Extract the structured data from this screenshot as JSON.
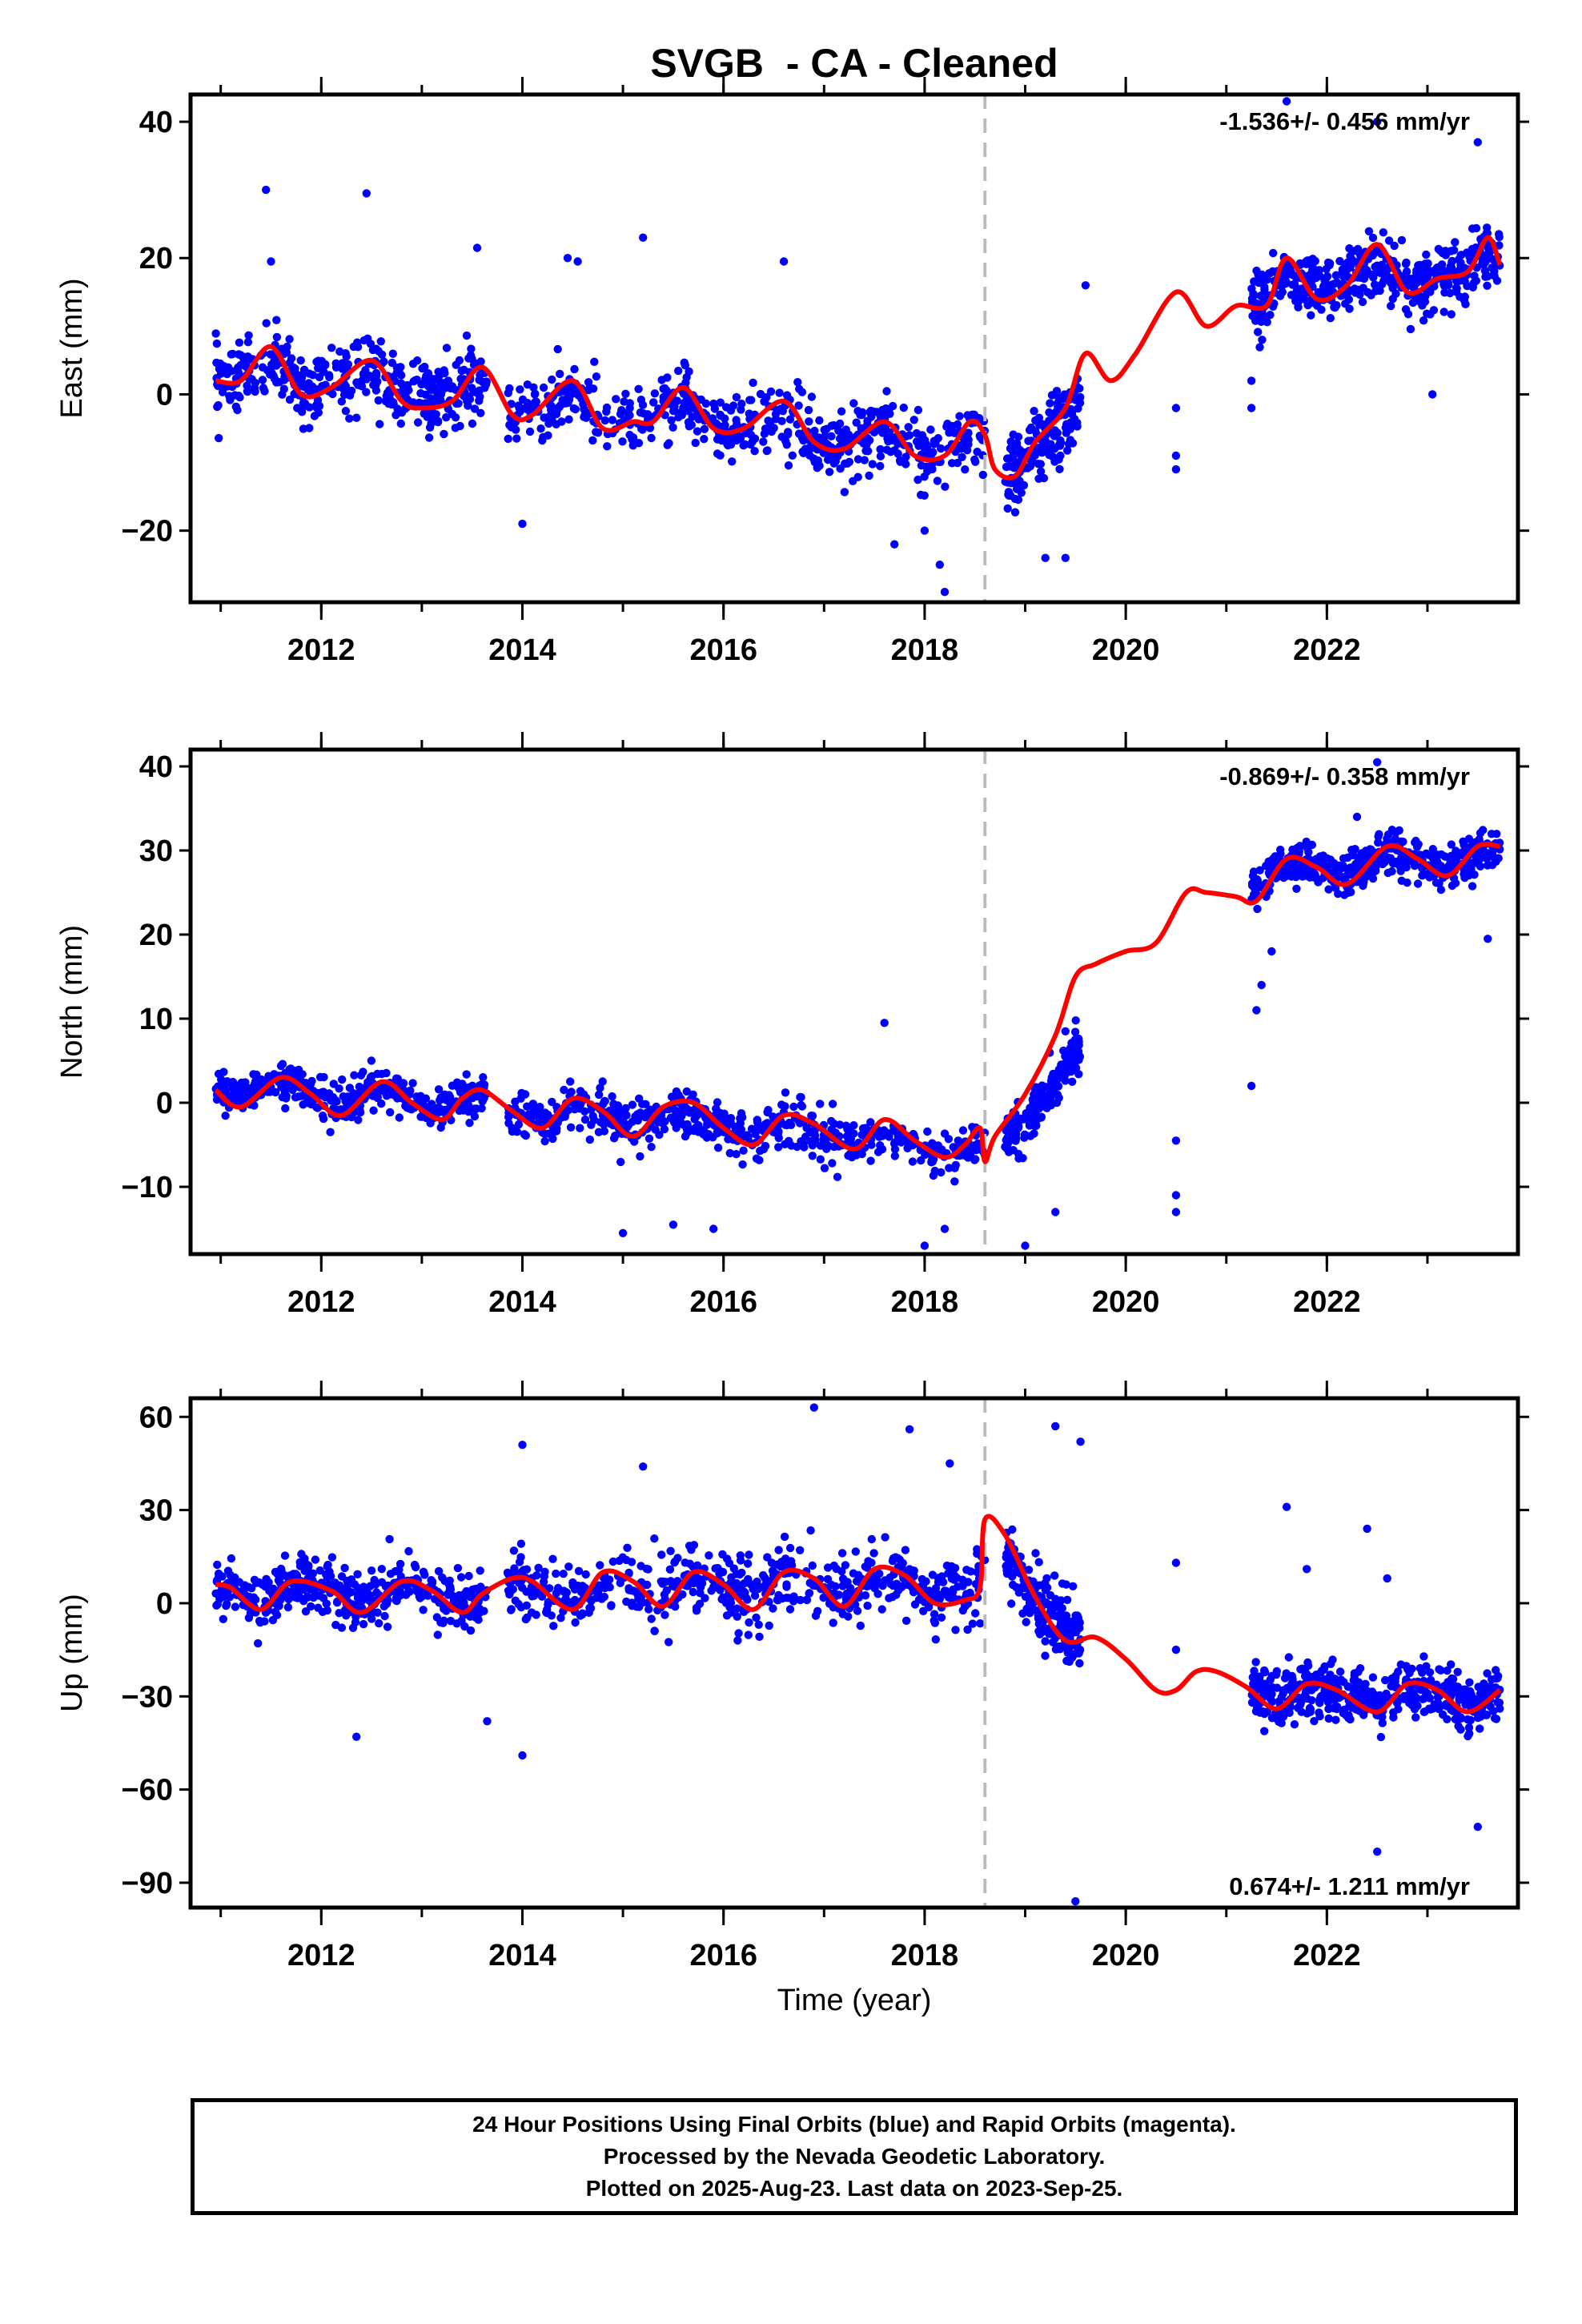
{
  "title": "SVGB  - CA - Cleaned",
  "colors": {
    "data": "#0000ff",
    "model": "#ff0000",
    "break_line": "#bbbbbb",
    "axes": "#000000"
  },
  "footer": {
    "line1": "24 Hour Positions Using Final Orbits (blue) and Rapid Orbits (magenta).",
    "line2": "Processed by the Nevada Geodetic Laboratory.",
    "line3": "Plotted on 2025-Aug-23. Last data on 2023-Sep-25."
  },
  "chart_data": [
    {
      "type": "scatter",
      "panel": "east",
      "ylabel": "East (mm)",
      "xlabel": "",
      "xlim": [
        2010.7,
        2023.9
      ],
      "ylim": [
        -30.5,
        44
      ],
      "xticks": [
        2012,
        2014,
        2016,
        2018,
        2020,
        2022
      ],
      "yticks": [
        -20,
        0,
        20,
        40
      ],
      "grid": false,
      "annotation": "-1.536+/- 0.456 mm/yr",
      "annotation_position": "top-right",
      "break_x": 2018.6,
      "data_segments": [
        [
          2010.95,
          2013.65
        ],
        [
          2013.85,
          2018.6
        ],
        [
          2018.8,
          2019.55
        ],
        [
          2021.25,
          2023.72
        ]
      ],
      "model": {
        "x": [
          2010.95,
          2011.2,
          2011.5,
          2011.8,
          2012.1,
          2012.5,
          2012.8,
          2013.0,
          2013.3,
          2013.6,
          2013.9,
          2014.1,
          2014.5,
          2014.8,
          2015.1,
          2015.3,
          2015.6,
          2015.9,
          2016.2,
          2016.6,
          2016.9,
          2017.2,
          2017.6,
          2017.9,
          2018.2,
          2018.45,
          2018.6,
          2018.7,
          2018.9,
          2019.1,
          2019.4,
          2019.6,
          2019.85,
          2020.1,
          2020.5,
          2020.8,
          2021.1,
          2021.4,
          2021.6,
          2021.9,
          2022.2,
          2022.5,
          2022.8,
          2023.1,
          2023.4,
          2023.6,
          2023.72
        ],
        "y": [
          2,
          2,
          7,
          0,
          1,
          5,
          -1,
          -2,
          -1,
          4,
          -3,
          -3,
          2,
          -5,
          -4,
          -4,
          1,
          -5,
          -5,
          -1,
          -7,
          -8,
          -4,
          -9,
          -9,
          -4,
          -6,
          -11,
          -12,
          -7,
          -2,
          6,
          2,
          6,
          15,
          10,
          13,
          13,
          20,
          14,
          16,
          22,
          15,
          17,
          18,
          23,
          19
        ]
      },
      "clusters": [
        {
          "x": [
            2010.95,
            2013.65
          ],
          "y": [
            2.5,
            1.5
          ],
          "sd": 4.5,
          "n": 420
        },
        {
          "x": [
            2013.85,
            2018.6
          ],
          "y": [
            -2,
            -8
          ],
          "sd": 4.5,
          "n": 600
        },
        {
          "x": [
            2018.8,
            2019.55
          ],
          "y": [
            -12,
            -8
          ],
          "sd": 5,
          "n": 180
        },
        {
          "x": [
            2021.25,
            2023.72
          ],
          "y": [
            16,
            18
          ],
          "sd": 4,
          "n": 480
        }
      ],
      "extra_points": [
        [
          2011.45,
          30
        ],
        [
          2012.45,
          29.5
        ],
        [
          2015.2,
          23
        ],
        [
          2014.45,
          20
        ],
        [
          2014.55,
          19.5
        ],
        [
          2011.5,
          19.5
        ],
        [
          2016.6,
          19.5
        ],
        [
          2013.55,
          21.5
        ],
        [
          2014.0,
          -19
        ],
        [
          2018.15,
          -25
        ],
        [
          2018.2,
          -29
        ],
        [
          2017.7,
          -22
        ],
        [
          2018.0,
          -20
        ],
        [
          2019.6,
          16
        ],
        [
          2020.5,
          -2
        ],
        [
          2020.5,
          -9
        ],
        [
          2020.5,
          -11
        ],
        [
          2021.25,
          -2
        ],
        [
          2021.25,
          2
        ],
        [
          2021.6,
          43
        ],
        [
          2022.5,
          40
        ],
        [
          2023.05,
          0
        ],
        [
          2023.5,
          37
        ],
        [
          2019.2,
          -24
        ],
        [
          2019.4,
          -24
        ]
      ]
    },
    {
      "type": "scatter",
      "panel": "north",
      "ylabel": "North (mm)",
      "xlabel": "",
      "xlim": [
        2010.7,
        2023.9
      ],
      "ylim": [
        -18,
        42
      ],
      "xticks": [
        2012,
        2014,
        2016,
        2018,
        2020,
        2022
      ],
      "yticks": [
        -10,
        0,
        10,
        20,
        30,
        40
      ],
      "grid": false,
      "annotation": "-0.869+/- 0.358 mm/yr",
      "annotation_position": "top-right",
      "break_x": 2018.6,
      "data_segments": [
        [
          2010.95,
          2013.65
        ],
        [
          2013.85,
          2018.6
        ],
        [
          2018.8,
          2019.55
        ],
        [
          2021.25,
          2023.72
        ]
      ],
      "model": {
        "x": [
          2010.95,
          2011.2,
          2011.6,
          2011.9,
          2012.2,
          2012.6,
          2012.9,
          2013.2,
          2013.4,
          2013.6,
          2013.9,
          2014.2,
          2014.5,
          2014.8,
          2015.1,
          2015.4,
          2015.7,
          2016.0,
          2016.3,
          2016.6,
          2016.9,
          2017.3,
          2017.6,
          2017.9,
          2018.2,
          2018.4,
          2018.55,
          2018.6,
          2018.7,
          2019.0,
          2019.3,
          2019.5,
          2019.7,
          2020.0,
          2020.3,
          2020.6,
          2020.8,
          2021.1,
          2021.3,
          2021.6,
          2021.9,
          2022.2,
          2022.6,
          2022.9,
          2023.2,
          2023.5,
          2023.72
        ],
        "y": [
          1.5,
          -0.5,
          3,
          1,
          -1.5,
          2.5,
          0,
          -2,
          0.5,
          1.5,
          -1,
          -3,
          0.5,
          -1,
          -4,
          -0.5,
          0,
          -3,
          -5,
          -1.5,
          -2.5,
          -5.5,
          -2,
          -4.5,
          -6.5,
          -5,
          -3,
          -7,
          -4,
          1,
          8,
          15,
          16.5,
          18,
          19,
          25,
          25,
          24.5,
          24,
          29,
          28,
          26,
          30.5,
          29,
          27,
          30.5,
          30.5
        ]
      },
      "clusters": [
        {
          "x": [
            2010.95,
            2013.65
          ],
          "y": [
            2.5,
            -0.5
          ],
          "sd": 2.2,
          "n": 420
        },
        {
          "x": [
            2013.85,
            2018.6
          ],
          "y": [
            -0.5,
            -6
          ],
          "sd": 2.5,
          "n": 600
        },
        {
          "x": [
            2018.8,
            2019.55
          ],
          "y": [
            -8,
            -7
          ],
          "sd": 2.5,
          "n": 180
        },
        {
          "x": [
            2021.25,
            2023.72
          ],
          "y": [
            28,
            29
          ],
          "sd": 2.2,
          "n": 480
        }
      ],
      "extra_points": [
        [
          2015.0,
          -15.5
        ],
        [
          2015.5,
          -14.5
        ],
        [
          2015.9,
          -15
        ],
        [
          2017.6,
          9.5
        ],
        [
          2018.0,
          -17
        ],
        [
          2018.2,
          -15
        ],
        [
          2019.0,
          -17
        ],
        [
          2019.3,
          -13
        ],
        [
          2019.4,
          8.5
        ],
        [
          2020.5,
          -4.5
        ],
        [
          2020.5,
          -11
        ],
        [
          2020.5,
          -13
        ],
        [
          2021.25,
          2
        ],
        [
          2021.3,
          11
        ],
        [
          2021.35,
          14
        ],
        [
          2021.45,
          18
        ],
        [
          2022.5,
          40.5
        ],
        [
          2022.3,
          34
        ],
        [
          2023.6,
          19.5
        ]
      ]
    },
    {
      "type": "scatter",
      "panel": "up",
      "ylabel": "Up (mm)",
      "xlabel": "Time (year)",
      "xlim": [
        2010.7,
        2023.9
      ],
      "ylim": [
        -98,
        66
      ],
      "xticks": [
        2012,
        2014,
        2016,
        2018,
        2020,
        2022
      ],
      "yticks": [
        -90,
        -60,
        -30,
        0,
        30,
        60
      ],
      "grid": false,
      "annotation": "0.674+/- 1.211 mm/yr",
      "annotation_position": "bottom-right",
      "break_x": 2018.6,
      "data_segments": [
        [
          2010.95,
          2013.65
        ],
        [
          2013.85,
          2018.6
        ],
        [
          2018.8,
          2019.55
        ],
        [
          2021.25,
          2023.72
        ]
      ],
      "model": {
        "x": [
          2010.95,
          2011.1,
          2011.4,
          2011.7,
          2012.1,
          2012.4,
          2012.8,
          2013.1,
          2013.4,
          2013.6,
          2013.9,
          2014.1,
          2014.5,
          2014.8,
          2015.1,
          2015.4,
          2015.7,
          2016.0,
          2016.3,
          2016.6,
          2016.9,
          2017.2,
          2017.5,
          2017.8,
          2018.1,
          2018.4,
          2018.55,
          2018.6,
          2018.8,
          2019.1,
          2019.4,
          2019.7,
          2020.0,
          2020.3,
          2020.5,
          2020.7,
          2020.9,
          2021.2,
          2021.5,
          2021.8,
          2022.1,
          2022.5,
          2022.8,
          2023.1,
          2023.4,
          2023.72
        ],
        "y": [
          6,
          5,
          -2,
          7,
          4,
          -3,
          7,
          4,
          -3,
          3,
          8,
          7,
          -2,
          10,
          7,
          -1,
          10,
          6,
          -2,
          10,
          8,
          -1,
          11,
          9,
          0,
          1,
          5,
          27,
          22,
          2,
          -12,
          -11,
          -18,
          -28,
          -28,
          -22,
          -22,
          -27,
          -34,
          -26,
          -28,
          -35,
          -26,
          -28,
          -35,
          -28
        ]
      },
      "clusters": [
        {
          "x": [
            2010.95,
            2013.65
          ],
          "y": [
            4,
            4
          ],
          "sd": 8,
          "n": 420
        },
        {
          "x": [
            2013.85,
            2018.6
          ],
          "y": [
            4,
            6
          ],
          "sd": 10,
          "n": 600
        },
        {
          "x": [
            2018.8,
            2019.55
          ],
          "y": [
            8,
            -8
          ],
          "sd": 10,
          "n": 180
        },
        {
          "x": [
            2021.25,
            2023.72
          ],
          "y": [
            -28,
            -30
          ],
          "sd": 8,
          "n": 480
        }
      ],
      "extra_points": [
        [
          2012.35,
          -43
        ],
        [
          2013.65,
          -38
        ],
        [
          2014.0,
          51
        ],
        [
          2014.0,
          -49
        ],
        [
          2015.2,
          44
        ],
        [
          2016.9,
          63
        ],
        [
          2017.85,
          56
        ],
        [
          2018.25,
          45
        ],
        [
          2019.3,
          57
        ],
        [
          2019.55,
          52
        ],
        [
          2019.5,
          -96
        ],
        [
          2020.5,
          13
        ],
        [
          2020.5,
          -15
        ],
        [
          2021.6,
          31
        ],
        [
          2021.8,
          11
        ],
        [
          2022.4,
          24
        ],
        [
          2022.6,
          8
        ],
        [
          2022.5,
          -80
        ],
        [
          2023.5,
          -72
        ]
      ]
    }
  ]
}
